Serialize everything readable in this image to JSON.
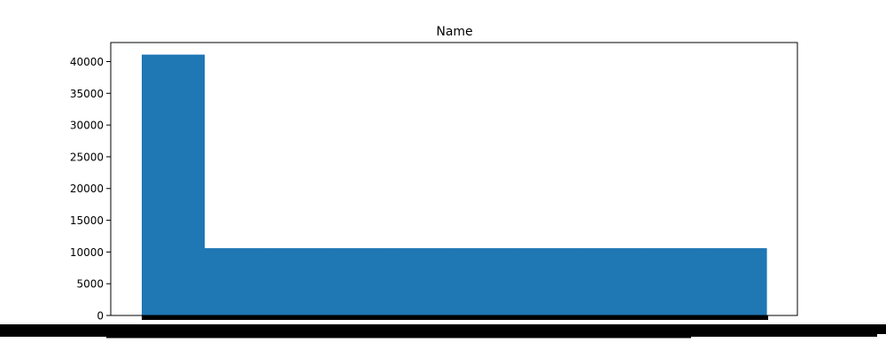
{
  "chart_data": {
    "type": "bar",
    "title": "Name",
    "xlabel": "",
    "ylabel": "",
    "ylim": [
      0,
      43000
    ],
    "yticks": [
      0,
      5000,
      10000,
      15000,
      20000,
      25000,
      30000,
      35000,
      40000
    ],
    "ytick_labels": [
      "0",
      "5000",
      "10000",
      "15000",
      "20000",
      "25000",
      "30000",
      "35000",
      "40000"
    ],
    "grid": false,
    "bar_color": "#1f77b4",
    "primary_category_count": 41100,
    "other_category_count_each": 10600,
    "other_category_bar_count": 9,
    "x_tick_labels_legible": false
  }
}
